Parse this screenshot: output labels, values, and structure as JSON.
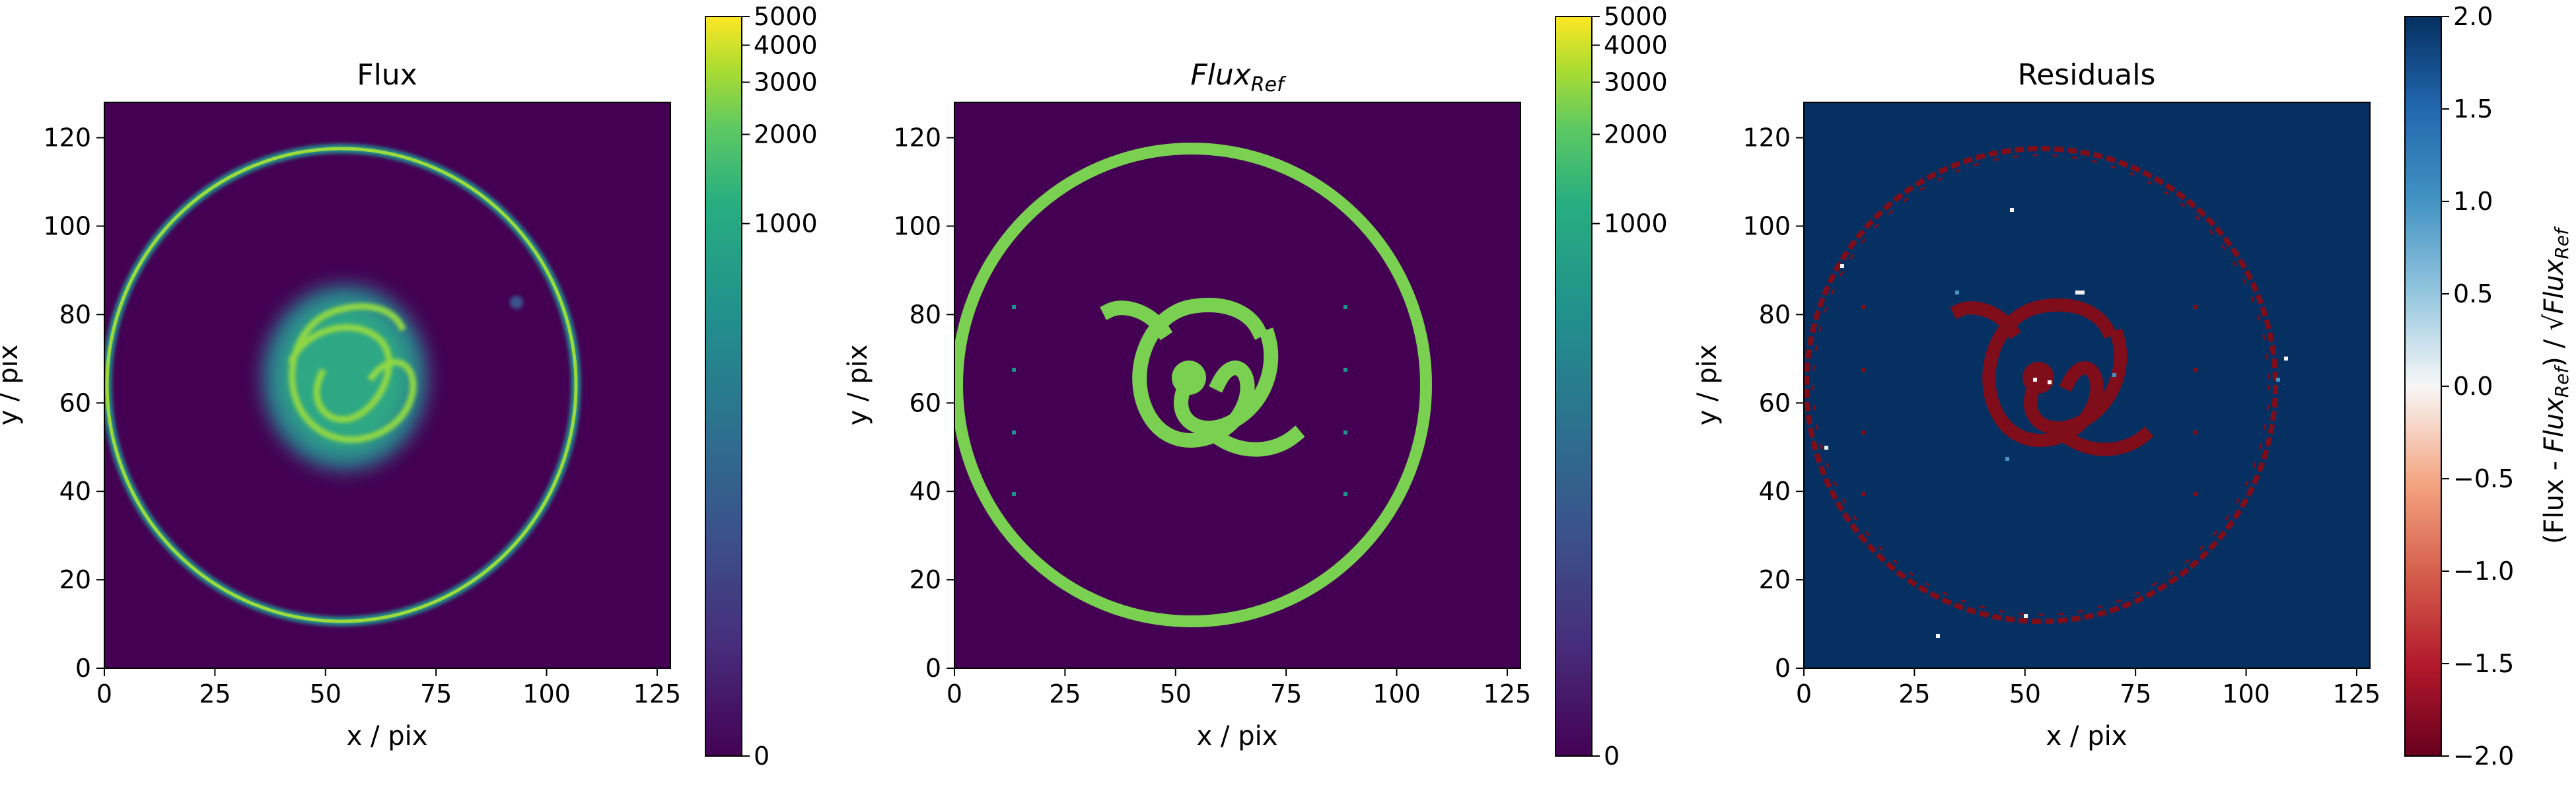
{
  "colors": {
    "background_dark": "#440154",
    "ring_green": "#7ad151",
    "residual_background": "#053061",
    "residual_red": "#800d1a"
  },
  "chart_data": [
    {
      "type": "heatmap",
      "title": "Flux",
      "xlabel": "x / pix",
      "ylabel": "y / pix",
      "xlim": [
        0,
        128
      ],
      "ylim": [
        0,
        128
      ],
      "x_ticks": [
        "0",
        "25",
        "50",
        "75",
        "100",
        "125"
      ],
      "y_ticks": [
        "0",
        "20",
        "40",
        "60",
        "80",
        "100",
        "120"
      ],
      "colorbar": {
        "colormap": "viridis",
        "scale": "log",
        "ticks": [
          "0",
          "1000",
          "2000",
          "3000",
          "4000",
          "5000"
        ],
        "label": ""
      },
      "description_values": {
        "ring_center": [
          53,
          64
        ],
        "ring_radius": 53
      }
    },
    {
      "type": "heatmap",
      "title_main": "Flux",
      "title_sub": "Ref",
      "xlabel": "x / pix",
      "ylabel": "y / pix",
      "xlim": [
        0,
        128
      ],
      "ylim": [
        0,
        128
      ],
      "x_ticks": [
        "0",
        "25",
        "50",
        "75",
        "100",
        "125"
      ],
      "y_ticks": [
        "0",
        "20",
        "40",
        "60",
        "80",
        "100",
        "120"
      ],
      "colorbar": {
        "colormap": "viridis",
        "scale": "log",
        "ticks": [
          "0",
          "1000",
          "2000",
          "3000",
          "4000",
          "5000"
        ],
        "label": ""
      }
    },
    {
      "type": "heatmap",
      "title": "Residuals",
      "xlabel": "x / pix",
      "ylabel": "y / pix",
      "xlim": [
        0,
        128
      ],
      "ylim": [
        0,
        128
      ],
      "x_ticks": [
        "0",
        "25",
        "50",
        "75",
        "100",
        "125"
      ],
      "y_ticks": [
        "0",
        "20",
        "40",
        "60",
        "80",
        "100",
        "120"
      ],
      "colorbar": {
        "colormap": "RdBu",
        "scale": "linear",
        "range": [
          -2.0,
          2.0
        ],
        "ticks": [
          "2.0",
          "1.5",
          "1.0",
          "0.5",
          "0.0",
          "−0.5",
          "−1.0",
          "−1.5",
          "−2.0"
        ],
        "label_parts": [
          "(Flux - ",
          "Flux",
          "Ref",
          ") / √",
          "Flux",
          "Ref"
        ]
      }
    }
  ]
}
